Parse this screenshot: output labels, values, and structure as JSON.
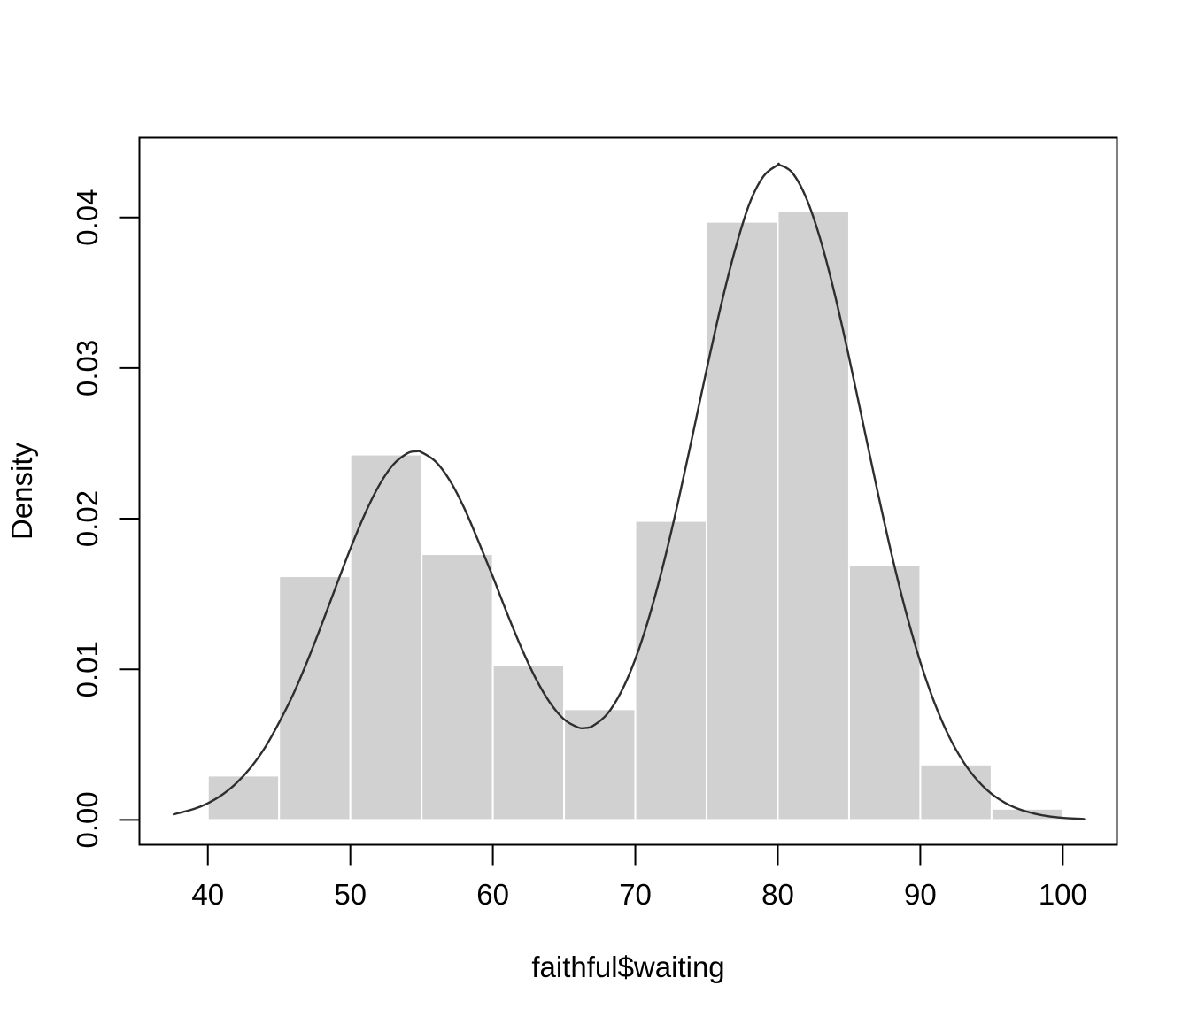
{
  "figure": {
    "background": "#ffffff"
  },
  "chart_data": {
    "type": "bar",
    "subtype": "histogram_with_density_curve",
    "title": "",
    "xlabel": "faithful$waiting",
    "ylabel": "Density",
    "xlim": [
      35.2,
      103.8
    ],
    "ylim": [
      -0.00165,
      0.0453
    ],
    "grid": false,
    "legend": "none",
    "x_ticks": {
      "values": [
        40,
        50,
        60,
        70,
        80,
        90,
        100
      ],
      "labels": [
        "40",
        "50",
        "60",
        "70",
        "80",
        "90",
        "100"
      ]
    },
    "y_ticks": {
      "values": [
        0.0,
        0.01,
        0.02,
        0.03,
        0.04
      ],
      "labels": [
        "0.00",
        "0.01",
        "0.02",
        "0.03",
        "0.04"
      ]
    },
    "histogram": {
      "bin_edges": [
        40,
        45,
        50,
        55,
        60,
        65,
        70,
        75,
        80,
        85,
        90,
        95,
        100
      ],
      "densities": [
        0.00294,
        0.01618,
        0.02426,
        0.01765,
        0.01029,
        0.00735,
        0.01985,
        0.03971,
        0.04044,
        0.01691,
        0.00368,
        0.00074
      ]
    },
    "density_curve": {
      "x": [
        37.6,
        39,
        40,
        41,
        42,
        43,
        44,
        45,
        46,
        47,
        48,
        49,
        50,
        51,
        52,
        53,
        54,
        54.6,
        55,
        56,
        57,
        58,
        59,
        60,
        61,
        62,
        63,
        64,
        65,
        66,
        66.5,
        67,
        68,
        69,
        70,
        71,
        72,
        73,
        74,
        75,
        76,
        77,
        78,
        79,
        80,
        80.1,
        81,
        82,
        83,
        84,
        85,
        86,
        87,
        88,
        89,
        90,
        91,
        92,
        93,
        94,
        95,
        96,
        97,
        98,
        99,
        100,
        101.5
      ],
      "y": [
        0.00037,
        0.00072,
        0.00111,
        0.00167,
        0.00244,
        0.00347,
        0.00479,
        0.00647,
        0.00836,
        0.01058,
        0.013,
        0.01552,
        0.018,
        0.02027,
        0.02218,
        0.02358,
        0.02434,
        0.02447,
        0.02441,
        0.02378,
        0.02251,
        0.02069,
        0.01847,
        0.01615,
        0.01372,
        0.01143,
        0.00941,
        0.0078,
        0.00668,
        0.00614,
        0.00611,
        0.00623,
        0.007,
        0.00849,
        0.01068,
        0.01357,
        0.01709,
        0.02111,
        0.02545,
        0.02988,
        0.03411,
        0.03785,
        0.04089,
        0.04274,
        0.04349,
        0.0435,
        0.04299,
        0.04128,
        0.0385,
        0.03488,
        0.0307,
        0.02625,
        0.0218,
        0.01758,
        0.01378,
        0.01049,
        0.00776,
        0.00557,
        0.00389,
        0.00264,
        0.00173,
        0.00111,
        0.00069,
        0.00042,
        0.00024,
        0.00014,
        6e-05
      ]
    },
    "colors": {
      "bar_fill": "#d1d1d1",
      "bar_border": "#ffffff",
      "curve": "#2e2e2e",
      "axis": "#000000",
      "text": "#000000"
    }
  }
}
